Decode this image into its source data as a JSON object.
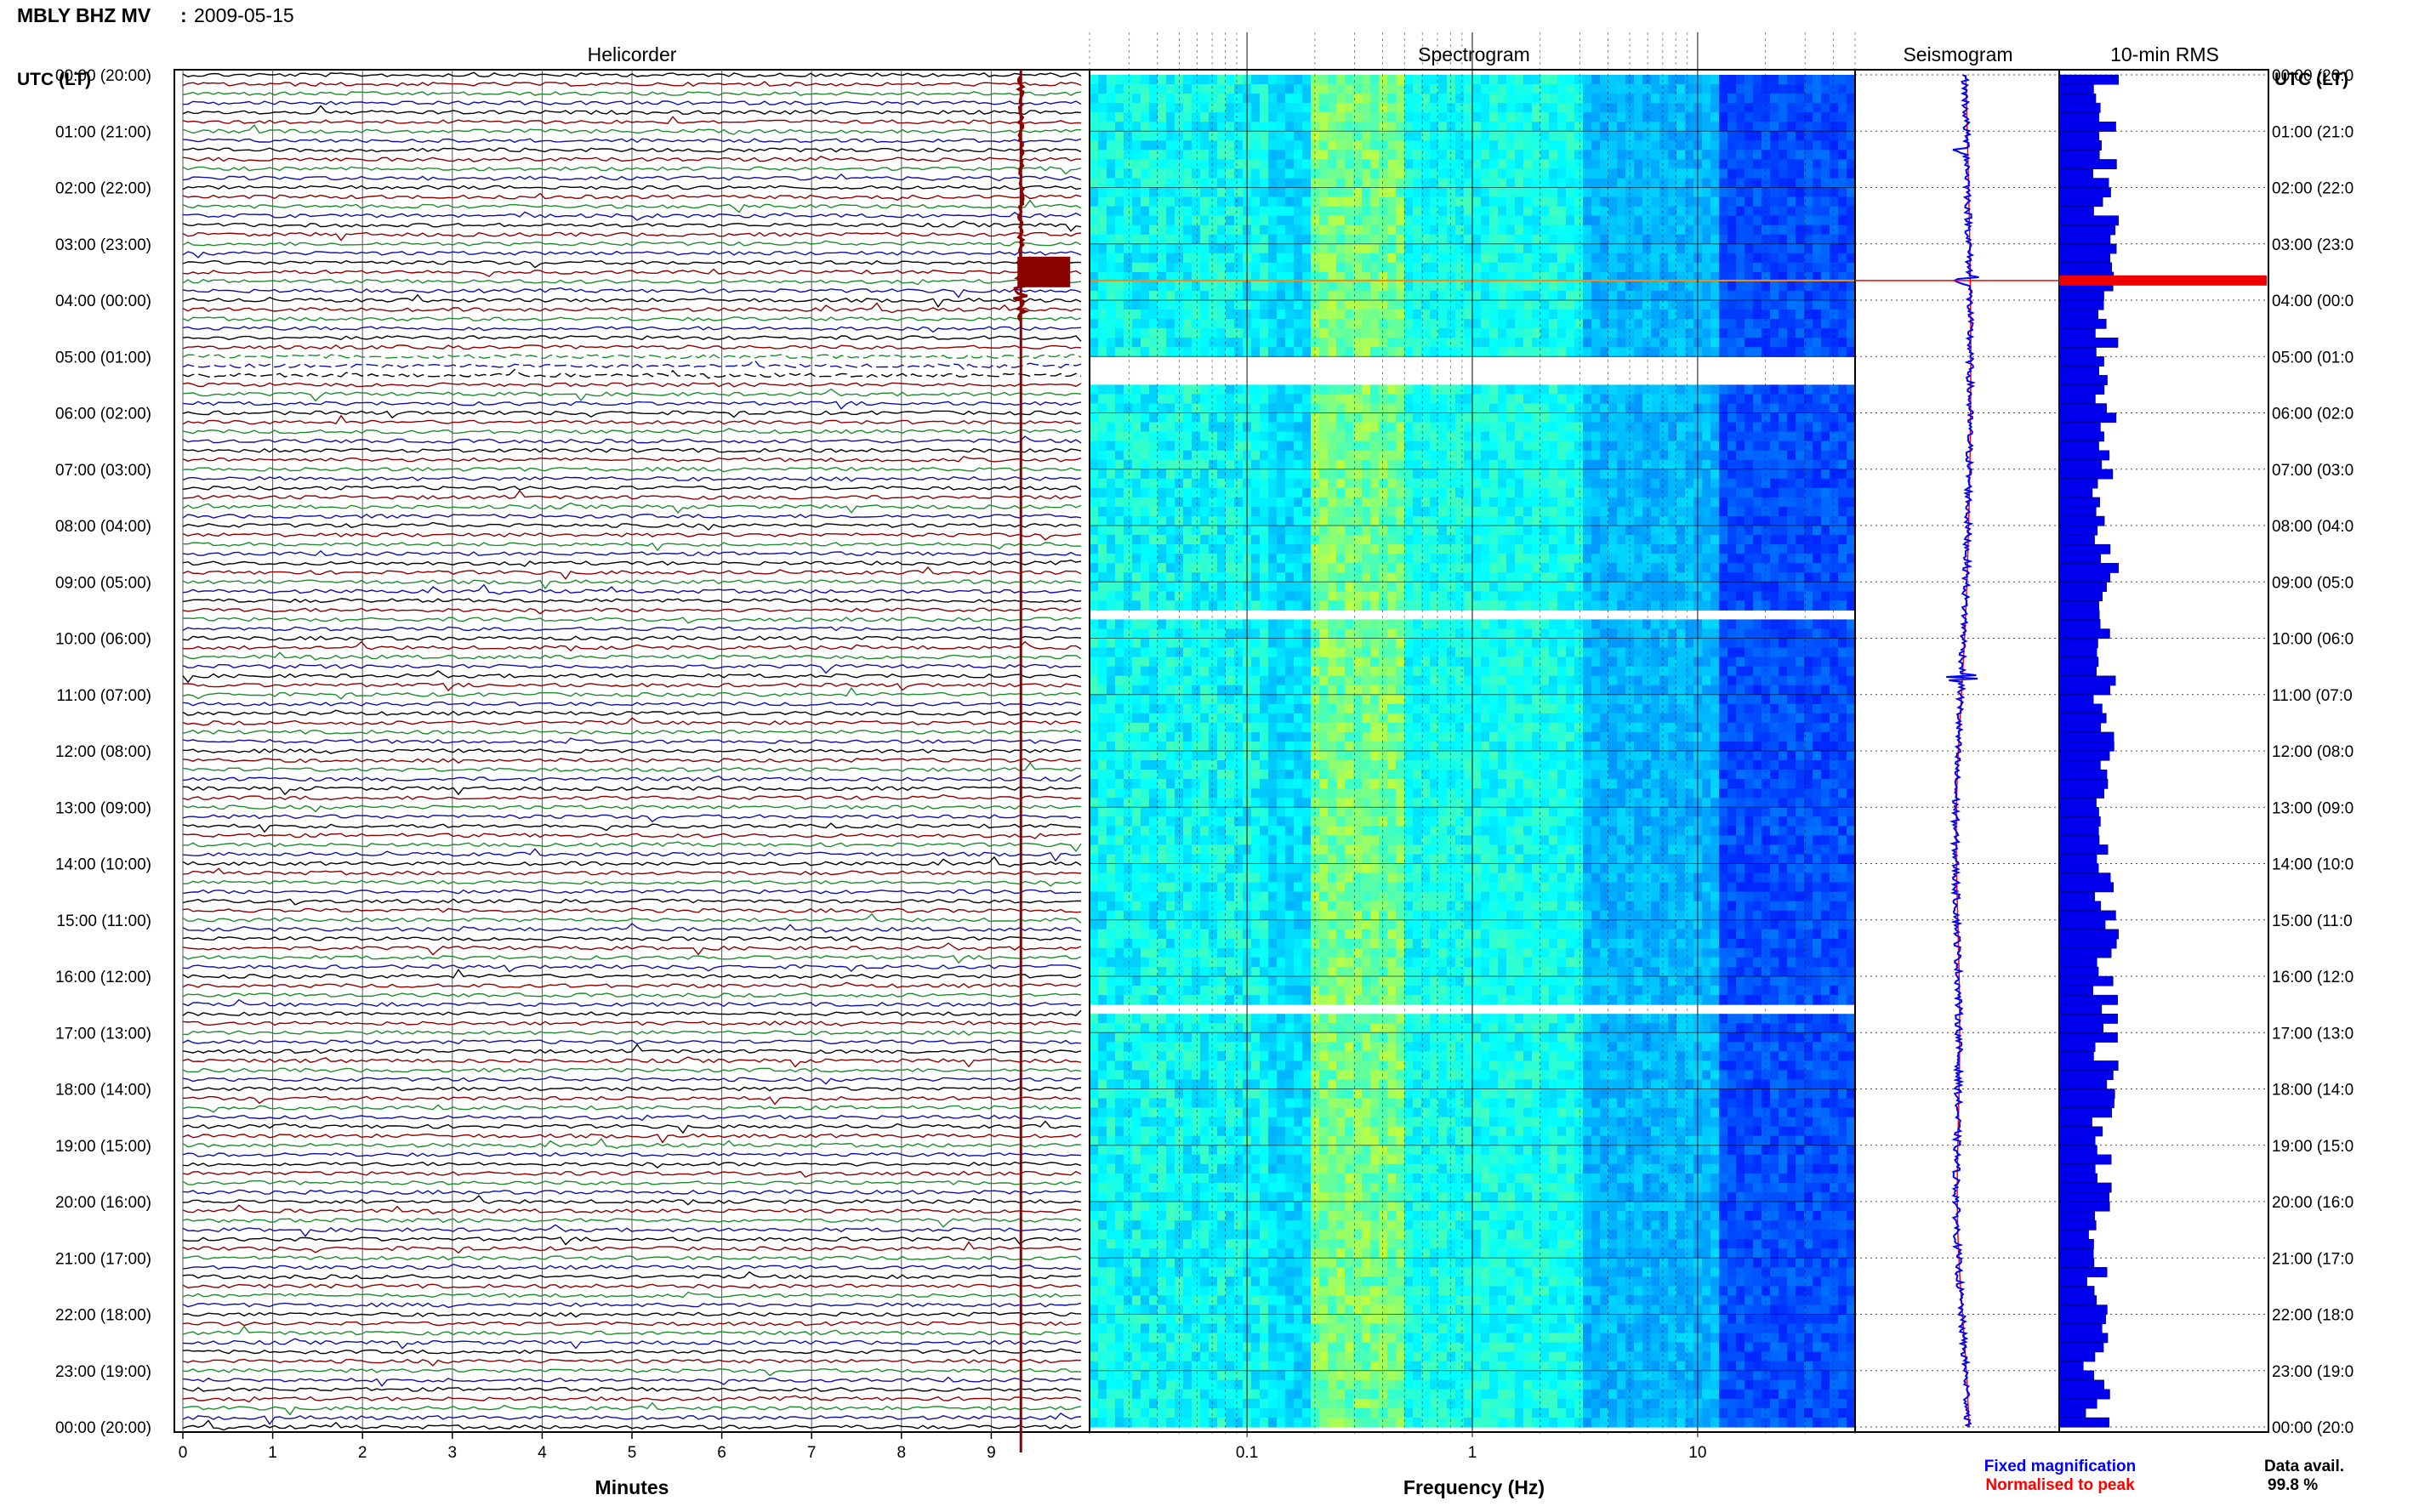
{
  "header": {
    "station": "MBLY BHZ MV",
    "separator": ":",
    "date": "2009-05-15"
  },
  "panels": {
    "helicorder": "Helicorder",
    "spectrogram": "Spectrogram",
    "seismogram": "Seismogram",
    "rms": "10-min RMS"
  },
  "axes": {
    "utc_label_left": "UTC (LT)",
    "utc_label_right": "UTC (LT)",
    "x_label_helicorder": "Minutes",
    "x_label_spectrogram": "Frequency (Hz)"
  },
  "time_labels": [
    "00:00 (20:00)",
    "01:00 (21:00)",
    "02:00 (22:00)",
    "03:00 (23:00)",
    "04:00 (00:00)",
    "05:00 (01:00)",
    "06:00 (02:00)",
    "07:00 (03:00)",
    "08:00 (04:00)",
    "09:00 (05:00)",
    "10:00 (06:00)",
    "11:00 (07:00)",
    "12:00 (08:00)",
    "13:00 (09:00)",
    "14:00 (10:00)",
    "15:00 (11:00)",
    "16:00 (12:00)",
    "17:00 (13:00)",
    "18:00 (14:00)",
    "19:00 (15:00)",
    "20:00 (16:00)",
    "21:00 (17:00)",
    "22:00 (18:00)",
    "23:00 (19:00)",
    "00:00 (20:00)"
  ],
  "time_labels_right": [
    "00:00 (20:0",
    "01:00 (21:0",
    "02:00 (22:0",
    "03:00 (23:0",
    "04:00 (00:0",
    "05:00 (01:0",
    "06:00 (02:0",
    "07:00 (03:0",
    "08:00 (04:0",
    "09:00 (05:0",
    "10:00 (06:0",
    "11:00 (07:0",
    "12:00 (08:0",
    "13:00 (09:0",
    "14:00 (10:0",
    "15:00 (11:0",
    "16:00 (12:0",
    "17:00 (13:0",
    "18:00 (14:0",
    "19:00 (15:0",
    "20:00 (16:0",
    "21:00 (17:0",
    "22:00 (18:0",
    "23:00 (19:0",
    "00:00 (20:0"
  ],
  "legend": {
    "fixed": "Fixed magnification",
    "normalised": "Normalised to peak"
  },
  "availability": {
    "label": "Data avail.",
    "value": "99.8 %"
  },
  "chart_data": [
    {
      "type": "line",
      "panel": "Helicorder",
      "xlabel": "Minutes",
      "xlim": [
        0,
        10
      ],
      "x_ticks": [
        "0",
        "1",
        "2",
        "3",
        "4",
        "5",
        "6",
        "7",
        "8",
        "9"
      ],
      "y_ticks": [
        "00:00 (20:00)",
        "01:00 (21:00)",
        "02:00 (22:00)",
        "03:00 (23:00)",
        "04:00 (00:00)",
        "05:00 (01:00)",
        "06:00 (02:00)",
        "07:00 (03:00)",
        "08:00 (04:00)",
        "09:00 (05:00)",
        "10:00 (06:00)",
        "11:00 (07:00)",
        "12:00 (08:00)",
        "13:00 (09:00)",
        "14:00 (10:00)",
        "15:00 (11:00)",
        "16:00 (12:00)",
        "17:00 (13:00)",
        "18:00 (14:00)",
        "19:00 (15:00)",
        "20:00 (16:00)",
        "21:00 (17:00)",
        "22:00 (18:00)",
        "23:00 (19:00)",
        "00:00 (20:00)"
      ],
      "traces_per_hour": 6,
      "trace_colors": [
        "#000000",
        "#8b0000",
        "#1f8b2f",
        "#1010a0"
      ],
      "data_gap_hours": [
        5.0,
        5.5
      ],
      "event_marker_minute": 9.33,
      "event_marker_color": "#8b0000"
    },
    {
      "type": "heatmap",
      "panel": "Spectrogram",
      "xlabel": "Frequency (Hz)",
      "xscale": "log",
      "xlim": [
        0.02,
        50
      ],
      "x_ticks": [
        "0.1",
        "1",
        "10"
      ],
      "colormap": "jet",
      "gaps_hours": [
        [
          5.0,
          5.55
        ],
        [
          9.55,
          9.6
        ],
        [
          16.55,
          16.6
        ]
      ],
      "event_line_hour": 3.65
    },
    {
      "type": "line",
      "panel": "Seismogram",
      "series": [
        {
          "name": "Fixed magnification",
          "color": "#0000ff"
        },
        {
          "name": "Normalised to peak",
          "color": "#ff0000"
        }
      ],
      "event_hour": 3.65
    },
    {
      "type": "bar",
      "panel": "10-min RMS",
      "orientation": "horizontal",
      "bins": 144,
      "peak_hour": 3.65,
      "bar_color": "#0000ee",
      "peak_color": "#ee0000"
    }
  ]
}
